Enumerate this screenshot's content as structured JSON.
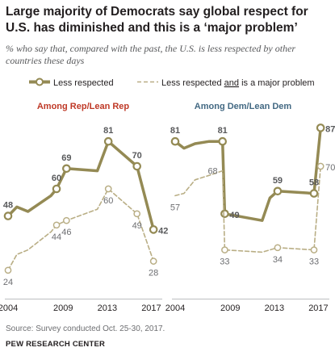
{
  "title": "Large majority of Democrats say global respect for U.S. has diminished and this is a ‘major problem’",
  "subtitle": "% who say that, compared with the past, the U.S. is less respected by other countries these days",
  "legend": {
    "solid_label": "Less respected",
    "dashed_label_part1": "Less respected ",
    "dashed_label_part2": "and",
    "dashed_label_part3": " is a major problem"
  },
  "source": "Source: Survey conducted Oct. 25-30, 2017.",
  "footer": "PEW RESEARCH CENTER",
  "colors": {
    "solid": "#948a54",
    "dashed": "#b9ae85",
    "rep_title": "#bf3927",
    "dem_title": "#436983"
  },
  "chart_data": [
    {
      "type": "line",
      "title": "Among Rep/Lean Rep",
      "x_ticks": [
        "2004",
        "2009",
        "2013",
        "2017"
      ],
      "xlim": [
        2004,
        2017.7
      ],
      "ylim": [
        15,
        90
      ],
      "series": [
        {
          "name": "Less respected",
          "style": "solid",
          "points": [
            [
              2004,
              48
            ],
            [
              2004.8,
              52
            ],
            [
              2005.8,
              50
            ],
            [
              2007.9,
              57
            ],
            [
              2008.4,
              60
            ],
            [
              2009.3,
              69
            ],
            [
              2012.1,
              68
            ],
            [
              2013.1,
              81
            ],
            [
              2015.7,
              70
            ],
            [
              2017.2,
              42
            ]
          ],
          "labels": [
            {
              "x": 2004,
              "y": 48,
              "text": "48",
              "pos": "above"
            },
            {
              "x": 2008.4,
              "y": 60,
              "text": "60",
              "pos": "above"
            },
            {
              "x": 2009.3,
              "y": 69,
              "text": "69",
              "pos": "above"
            },
            {
              "x": 2013.1,
              "y": 81,
              "text": "81",
              "pos": "above"
            },
            {
              "x": 2015.7,
              "y": 70,
              "text": "70",
              "pos": "above"
            },
            {
              "x": 2017.2,
              "y": 42,
              "text": "42",
              "pos": "right"
            }
          ],
          "markers": [
            [
              2004,
              48
            ],
            [
              2008.4,
              60
            ],
            [
              2009.3,
              69
            ],
            [
              2013.1,
              81
            ],
            [
              2015.7,
              70
            ],
            [
              2017.2,
              42
            ]
          ]
        },
        {
          "name": "Less respected and is a major problem",
          "style": "dashed",
          "points": [
            [
              2004,
              24
            ],
            [
              2004.8,
              31
            ],
            [
              2005.8,
              33
            ],
            [
              2007.9,
              41
            ],
            [
              2008.4,
              44
            ],
            [
              2009.3,
              46
            ],
            [
              2012.1,
              51
            ],
            [
              2013.1,
              60
            ],
            [
              2015.7,
              49
            ],
            [
              2017.2,
              28
            ]
          ],
          "labels": [
            {
              "x": 2004,
              "y": 24,
              "text": "24",
              "pos": "below"
            },
            {
              "x": 2008.4,
              "y": 44,
              "text": "44",
              "pos": "below"
            },
            {
              "x": 2009.3,
              "y": 46,
              "text": "46",
              "pos": "below"
            },
            {
              "x": 2013.1,
              "y": 60,
              "text": "60",
              "pos": "below"
            },
            {
              "x": 2015.7,
              "y": 49,
              "text": "49",
              "pos": "below"
            },
            {
              "x": 2017.2,
              "y": 28,
              "text": "28",
              "pos": "below"
            }
          ],
          "markers": [
            [
              2004,
              24
            ],
            [
              2008.4,
              44
            ],
            [
              2009.3,
              46
            ],
            [
              2013.1,
              60
            ],
            [
              2015.7,
              49
            ],
            [
              2017.2,
              28
            ]
          ]
        }
      ]
    },
    {
      "type": "line",
      "title": "Among Dem/Lean Dem",
      "x_ticks": [
        "2004",
        "2009",
        "2013",
        "2017"
      ],
      "xlim": [
        2004,
        2017.7
      ],
      "ylim": [
        15,
        90
      ],
      "series": [
        {
          "name": "Less respected",
          "style": "solid",
          "points": [
            [
              2004,
              81
            ],
            [
              2004.8,
              78
            ],
            [
              2005.8,
              80
            ],
            [
              2007.1,
              81
            ],
            [
              2008.3,
              81
            ],
            [
              2008.5,
              49
            ],
            [
              2011.9,
              46
            ],
            [
              2012.6,
              56
            ],
            [
              2013.3,
              59
            ],
            [
              2016.6,
              58
            ],
            [
              2017.2,
              87
            ]
          ],
          "labels": [
            {
              "x": 2004,
              "y": 81,
              "text": "81",
              "pos": "above"
            },
            {
              "x": 2008.3,
              "y": 81,
              "text": "81",
              "pos": "above"
            },
            {
              "x": 2008.5,
              "y": 49,
              "text": "49",
              "pos": "right"
            },
            {
              "x": 2013.3,
              "y": 59,
              "text": "59",
              "pos": "above"
            },
            {
              "x": 2016.6,
              "y": 58,
              "text": "58",
              "pos": "above"
            },
            {
              "x": 2017.2,
              "y": 87,
              "text": "87",
              "pos": "right"
            }
          ],
          "markers": [
            [
              2004,
              81
            ],
            [
              2008.3,
              81
            ],
            [
              2008.5,
              49
            ],
            [
              2013.3,
              59
            ],
            [
              2016.6,
              58
            ],
            [
              2017.2,
              87
            ]
          ]
        },
        {
          "name": "Less respected and is a major problem",
          "style": "dashed",
          "points": [
            [
              2004,
              57
            ],
            [
              2004.8,
              58
            ],
            [
              2005.8,
              64
            ],
            [
              2007.1,
              66
            ],
            [
              2008.3,
              68
            ],
            [
              2008.5,
              33
            ],
            [
              2011.9,
              32
            ],
            [
              2013.3,
              34
            ],
            [
              2016.6,
              33
            ],
            [
              2017.2,
              70
            ]
          ],
          "labels": [
            {
              "x": 2004,
              "y": 57,
              "text": "57",
              "pos": "below"
            },
            {
              "x": 2008.3,
              "y": 68,
              "text": "68",
              "pos": "left"
            },
            {
              "x": 2008.5,
              "y": 33,
              "text": "33",
              "pos": "below"
            },
            {
              "x": 2013.3,
              "y": 34,
              "text": "34",
              "pos": "below"
            },
            {
              "x": 2016.6,
              "y": 33,
              "text": "33",
              "pos": "below"
            },
            {
              "x": 2017.2,
              "y": 70,
              "text": "70",
              "pos": "right"
            }
          ],
          "markers": [
            [
              2008.5,
              33
            ],
            [
              2013.3,
              34
            ],
            [
              2016.6,
              33
            ],
            [
              2017.2,
              70
            ]
          ]
        }
      ]
    }
  ]
}
